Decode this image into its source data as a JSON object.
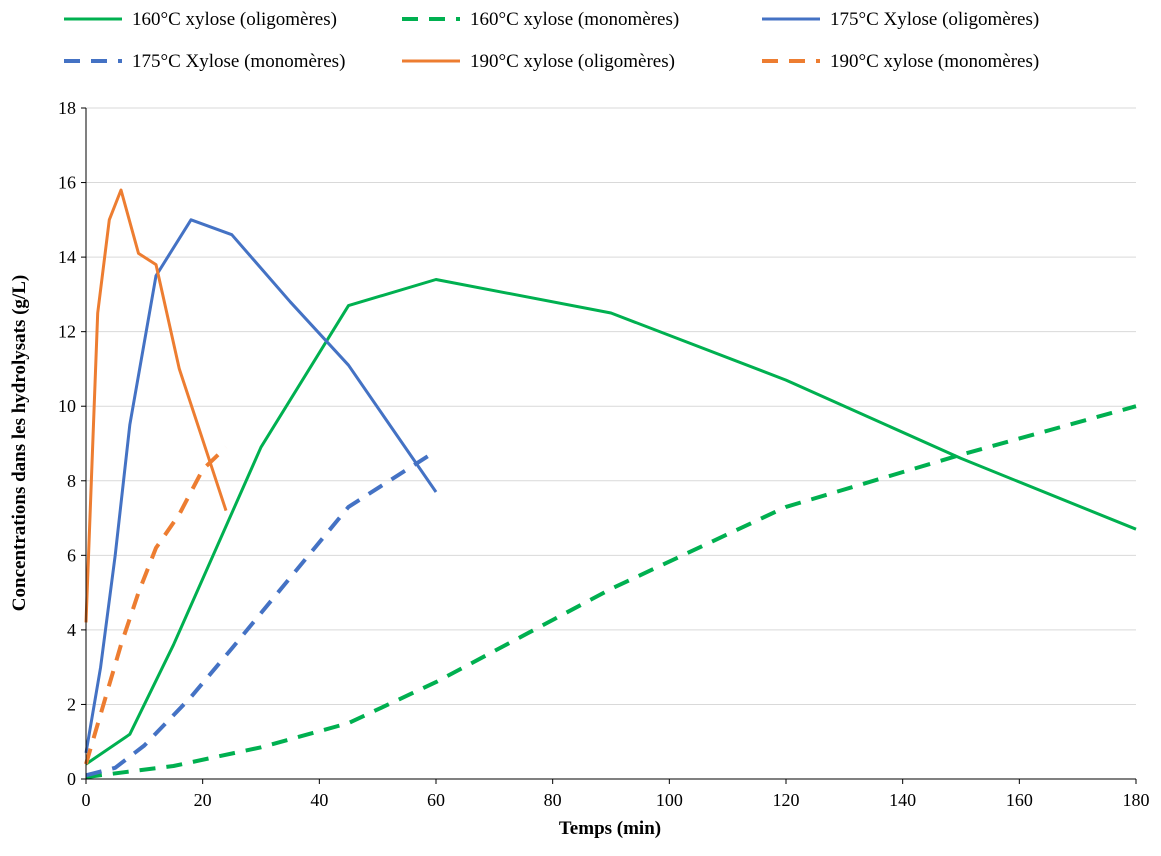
{
  "chart_data": {
    "type": "line",
    "xlabel": "Temps (min)",
    "ylabel": "Concentrations dans les hydrolysats (g/L)",
    "xlim": [
      0,
      180
    ],
    "ylim": [
      0,
      18
    ],
    "xticks": [
      "0",
      "20",
      "40",
      "60",
      "80",
      "100",
      "120",
      "140",
      "160",
      "180"
    ],
    "yticks": [
      "0",
      "2",
      "4",
      "6",
      "8",
      "10",
      "12",
      "14",
      "16",
      "18"
    ],
    "grid": "horizontal",
    "legend_position": "top",
    "series": [
      {
        "name": "160°C xylose (oligomères)",
        "color": "#00b050",
        "dash": "solid",
        "points": [
          [
            0,
            0.4
          ],
          [
            7.5,
            1.2
          ],
          [
            15,
            3.6
          ],
          [
            30,
            8.9
          ],
          [
            45,
            12.7
          ],
          [
            60,
            13.4
          ],
          [
            90,
            12.5
          ],
          [
            120,
            10.7
          ],
          [
            150,
            8.6
          ],
          [
            180,
            6.7
          ]
        ]
      },
      {
        "name": "160°C xylose (monomères)",
        "color": "#00b050",
        "dash": "dashed",
        "points": [
          [
            0,
            0.05
          ],
          [
            7.5,
            0.2
          ],
          [
            15,
            0.35
          ],
          [
            30,
            0.85
          ],
          [
            45,
            1.5
          ],
          [
            60,
            2.6
          ],
          [
            90,
            5.1
          ],
          [
            120,
            7.3
          ],
          [
            150,
            8.7
          ],
          [
            180,
            10.0
          ]
        ]
      },
      {
        "name": "175°C Xylose (oligomères)",
        "color": "#4472c4",
        "dash": "solid",
        "points": [
          [
            0,
            0.7
          ],
          [
            2.5,
            3.0
          ],
          [
            5,
            6.0
          ],
          [
            7.5,
            9.5
          ],
          [
            12,
            13.5
          ],
          [
            18,
            15.0
          ],
          [
            25,
            14.6
          ],
          [
            35,
            12.8
          ],
          [
            45,
            11.1
          ],
          [
            60,
            7.7
          ]
        ]
      },
      {
        "name": "175°C Xylose (monomères)",
        "color": "#4472c4",
        "dash": "dashed",
        "points": [
          [
            0,
            0.1
          ],
          [
            5,
            0.3
          ],
          [
            10,
            0.9
          ],
          [
            18,
            2.2
          ],
          [
            25,
            3.5
          ],
          [
            35,
            5.4
          ],
          [
            45,
            7.3
          ],
          [
            60,
            8.8
          ]
        ]
      },
      {
        "name": "190°C xylose (oligomères)",
        "color": "#ed7d31",
        "dash": "solid",
        "points": [
          [
            0,
            4.2
          ],
          [
            2,
            12.5
          ],
          [
            4,
            15.0
          ],
          [
            6,
            15.8
          ],
          [
            9,
            14.1
          ],
          [
            12,
            13.8
          ],
          [
            16,
            11.0
          ],
          [
            20,
            9.1
          ],
          [
            24,
            7.2
          ]
        ]
      },
      {
        "name": "190°C xylose (monomères)",
        "color": "#ed7d31",
        "dash": "dashed",
        "points": [
          [
            0,
            0.4
          ],
          [
            3,
            2.0
          ],
          [
            6,
            3.6
          ],
          [
            9,
            5.0
          ],
          [
            12,
            6.2
          ],
          [
            16,
            7.1
          ],
          [
            20,
            8.3
          ],
          [
            24,
            8.9
          ]
        ]
      }
    ]
  }
}
